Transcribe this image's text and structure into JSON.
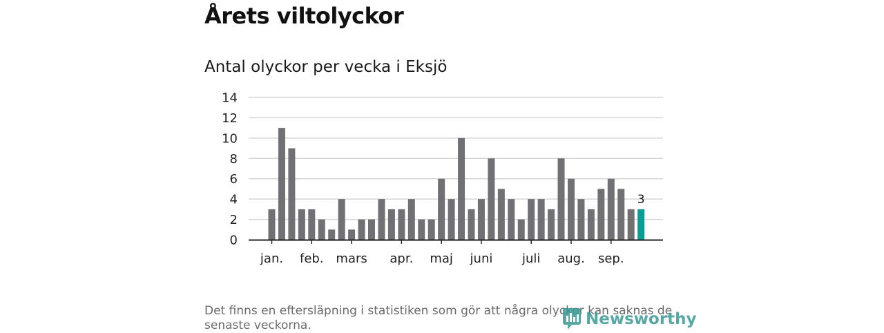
{
  "headline": "Årets viltolyckor",
  "chart_data": {
    "type": "bar",
    "title": "Antal olyckor per vecka i Eksjö",
    "xlabel": "",
    "ylabel": "",
    "ylim": [
      0,
      14
    ],
    "yticks": [
      0,
      2,
      4,
      6,
      8,
      10,
      12,
      14
    ],
    "values": [
      3,
      11,
      9,
      3,
      3,
      2,
      1,
      4,
      1,
      2,
      2,
      4,
      3,
      3,
      4,
      2,
      2,
      6,
      4,
      10,
      3,
      4,
      8,
      5,
      4,
      2,
      4,
      4,
      3,
      8,
      6,
      4,
      3,
      5,
      6,
      5,
      3,
      3
    ],
    "highlight_index": 37,
    "highlight_label": "3",
    "months": [
      {
        "label": "jan.",
        "week": 0
      },
      {
        "label": "feb.",
        "week": 4
      },
      {
        "label": "mars",
        "week": 8
      },
      {
        "label": "apr.",
        "week": 13
      },
      {
        "label": "maj",
        "week": 17
      },
      {
        "label": "juni",
        "week": 21
      },
      {
        "label": "juli",
        "week": 26
      },
      {
        "label": "aug.",
        "week": 30
      },
      {
        "label": "sep.",
        "week": 34
      }
    ],
    "colors": {
      "bar": "#707075",
      "highlight": "#0a9d94",
      "grid": "#d6d6d6",
      "axis": "#222222"
    }
  },
  "footnote": "Det finns en eftersläpning i statistiken som gör att några olyckor kan saknas de senaste veckorna.",
  "logo": {
    "text": "Newsworthy",
    "icon": "newsworthy-logo-icon",
    "color": "#3a9a95"
  }
}
